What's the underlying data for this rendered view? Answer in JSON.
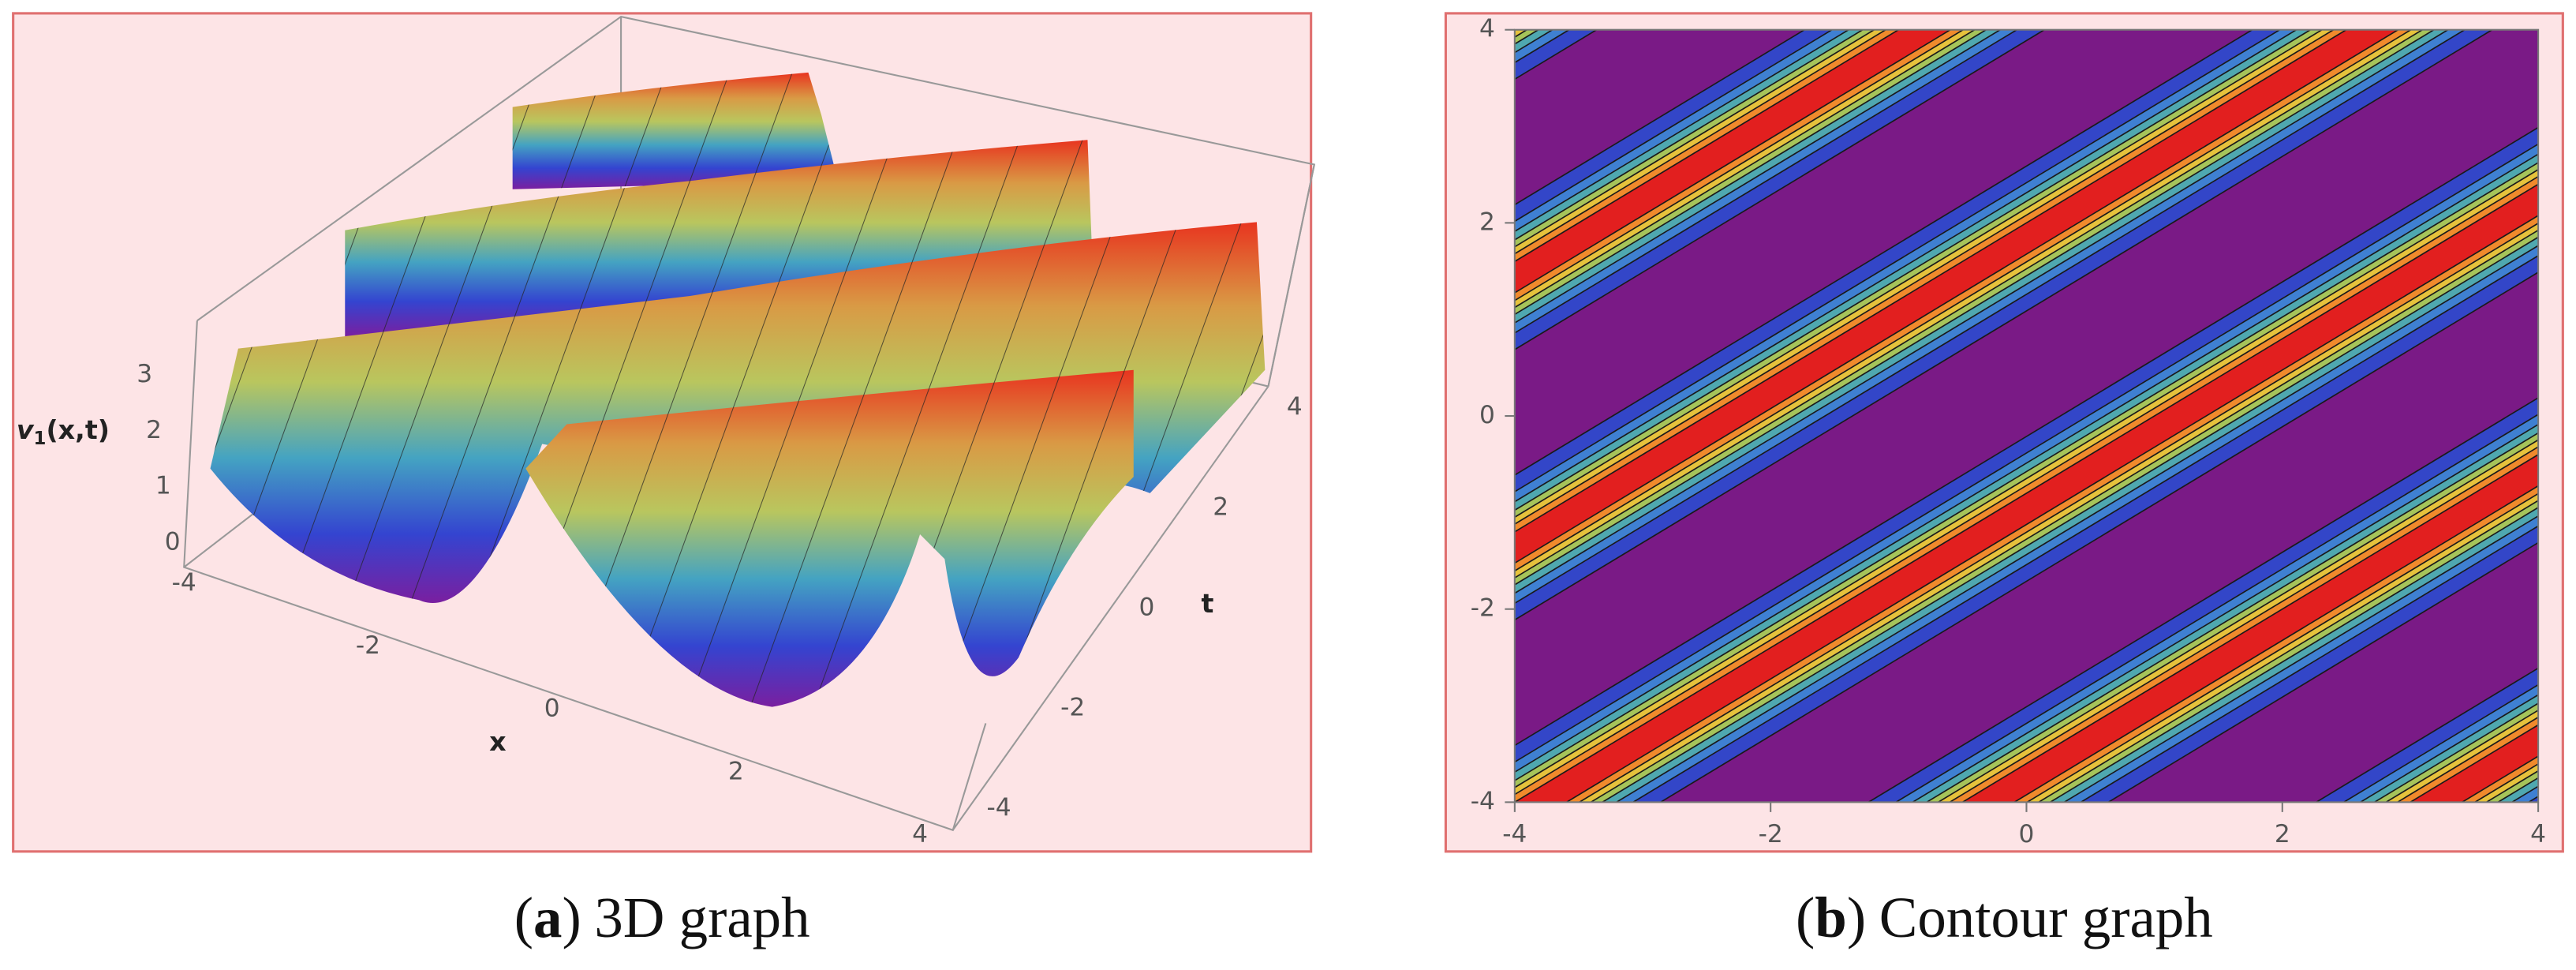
{
  "panel_a": {
    "caption": {
      "prefix": "(",
      "label": "a",
      "suffix": ")",
      "text": "3D graph"
    },
    "x_axis": {
      "label": "x",
      "ticks": [
        -4,
        -2,
        0,
        2,
        4
      ]
    },
    "t_axis": {
      "label": "t",
      "ticks": [
        -4,
        -2,
        0,
        2,
        4
      ]
    },
    "z_axis": {
      "label": {
        "symbol": "v",
        "subscript": "1",
        "args": "(x,t)"
      },
      "ticks": [
        0,
        1,
        2,
        3
      ]
    }
  },
  "panel_b": {
    "caption": {
      "prefix": "(",
      "label": "b",
      "suffix": ")",
      "text": "Contour graph"
    },
    "x_axis": {
      "ticks": [
        -4,
        -2,
        0,
        2,
        4
      ]
    },
    "y_axis": {
      "ticks": [
        -4,
        -2,
        0,
        2,
        4
      ]
    }
  }
}
